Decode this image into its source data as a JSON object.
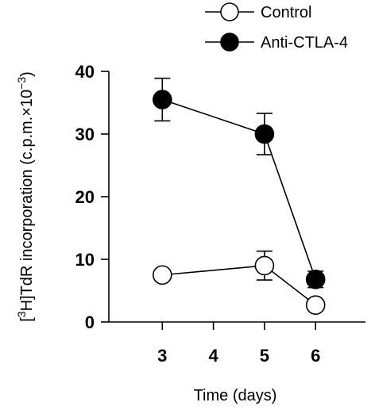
{
  "chart_data": {
    "type": "line",
    "title": "",
    "xlabel": "Time (days)",
    "ylabel_parts": {
      "open": "[",
      "sup1": "3",
      "mid": "H]TdR incorporation (c.p.m.×10",
      "sup2": "−3",
      "close": ")"
    },
    "x_ticks": [
      "3",
      "4",
      "5",
      "6"
    ],
    "y_ticks": [
      "0",
      "10",
      "20",
      "30",
      "40"
    ],
    "xlim": [
      2.0,
      7.0
    ],
    "ylim": [
      0,
      40
    ],
    "grid": false,
    "legend_position": "top-right",
    "series": [
      {
        "name": "Control",
        "marker": "open-circle",
        "color": "#000000",
        "points": [
          {
            "x": 3,
            "y": 7.5,
            "err": 0
          },
          {
            "x": 5,
            "y": 9.0,
            "err": 2.3
          },
          {
            "x": 6,
            "y": 2.7,
            "err": 0
          }
        ]
      },
      {
        "name": "Anti-CTLA-4",
        "marker": "filled-circle",
        "color": "#000000",
        "points": [
          {
            "x": 3,
            "y": 35.5,
            "err": 3.4
          },
          {
            "x": 5,
            "y": 30.0,
            "err": 3.3
          },
          {
            "x": 6,
            "y": 6.8,
            "err": 1.3
          }
        ]
      }
    ]
  }
}
